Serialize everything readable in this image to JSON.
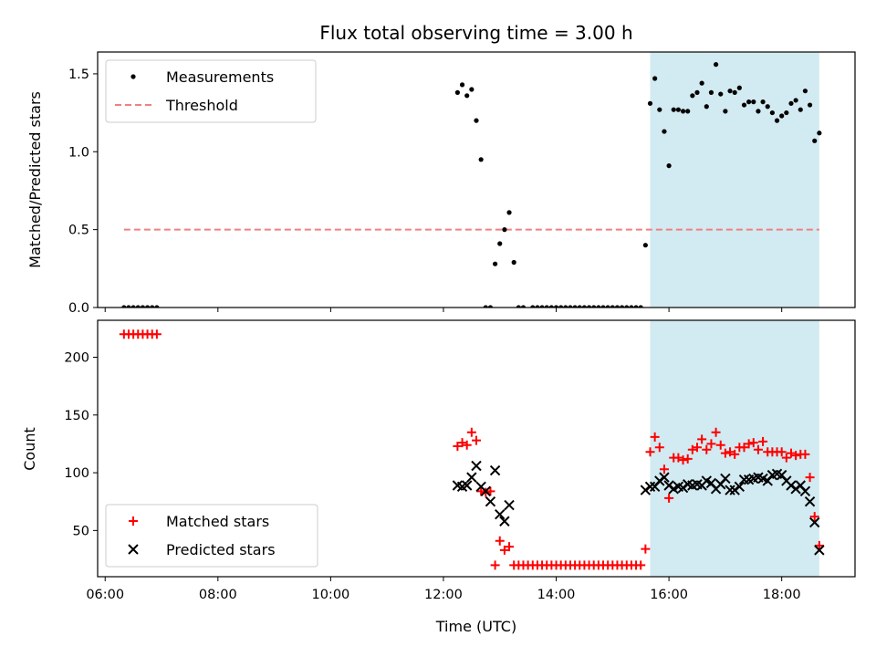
{
  "title": "Flux total observing time = 3.00 h",
  "colors": {
    "highlight": "#add8e6",
    "measurement": "#000000",
    "threshold": "#f08080",
    "matched": "#ff0000",
    "predicted": "#000000"
  },
  "highlight_range": [
    "15:40",
    "18:40"
  ],
  "chart_data": [
    {
      "type": "scatter",
      "name": "top-panel",
      "xlabel": "",
      "ylabel": "Matched/Predicted stars",
      "xlim": [
        "05:52",
        "19:18"
      ],
      "ylim": [
        0,
        1.64
      ],
      "xticks": [
        "06:00",
        "08:00",
        "10:00",
        "12:00",
        "14:00",
        "16:00",
        "18:00"
      ],
      "yticks": [
        "0.0",
        "0.5",
        "1.0",
        "1.5"
      ],
      "legend": {
        "position": "top-left",
        "entries": [
          "Measurements",
          "Threshold"
        ]
      },
      "threshold": {
        "name": "Threshold",
        "value": 0.5,
        "x_start": "06:20",
        "x_end": "18:40"
      },
      "series": [
        {
          "name": "Measurements",
          "marker": "dot",
          "points": [
            [
              "06:20",
              0
            ],
            [
              "06:25",
              0
            ],
            [
              "06:30",
              0
            ],
            [
              "06:35",
              0
            ],
            [
              "06:40",
              0
            ],
            [
              "06:45",
              0
            ],
            [
              "06:50",
              0
            ],
            [
              "06:55",
              0
            ],
            [
              "12:15",
              1.38
            ],
            [
              "12:20",
              1.43
            ],
            [
              "12:25",
              1.36
            ],
            [
              "12:30",
              1.4
            ],
            [
              "12:35",
              1.2
            ],
            [
              "12:40",
              0.95
            ],
            [
              "12:45",
              0
            ],
            [
              "12:50",
              0
            ],
            [
              "12:55",
              0.28
            ],
            [
              "13:00",
              0.41
            ],
            [
              "13:05",
              0.5
            ],
            [
              "13:10",
              0.61
            ],
            [
              "13:15",
              0.29
            ],
            [
              "13:20",
              0
            ],
            [
              "13:25",
              0
            ],
            [
              "13:35",
              0
            ],
            [
              "13:40",
              0
            ],
            [
              "13:45",
              0
            ],
            [
              "13:50",
              0
            ],
            [
              "13:55",
              0
            ],
            [
              "14:00",
              0
            ],
            [
              "14:05",
              0
            ],
            [
              "14:10",
              0
            ],
            [
              "14:15",
              0
            ],
            [
              "14:20",
              0
            ],
            [
              "14:25",
              0
            ],
            [
              "14:30",
              0
            ],
            [
              "14:35",
              0
            ],
            [
              "14:40",
              0
            ],
            [
              "14:45",
              0
            ],
            [
              "14:50",
              0
            ],
            [
              "14:55",
              0
            ],
            [
              "15:00",
              0
            ],
            [
              "15:05",
              0
            ],
            [
              "15:10",
              0
            ],
            [
              "15:15",
              0
            ],
            [
              "15:20",
              0
            ],
            [
              "15:25",
              0
            ],
            [
              "15:30",
              0
            ],
            [
              "15:35",
              0.4
            ],
            [
              "15:40",
              1.31
            ],
            [
              "15:45",
              1.47
            ],
            [
              "15:50",
              1.27
            ],
            [
              "15:55",
              1.13
            ],
            [
              "16:00",
              0.91
            ],
            [
              "16:05",
              1.27
            ],
            [
              "16:10",
              1.27
            ],
            [
              "16:15",
              1.26
            ],
            [
              "16:20",
              1.26
            ],
            [
              "16:25",
              1.36
            ],
            [
              "16:30",
              1.38
            ],
            [
              "16:35",
              1.44
            ],
            [
              "16:40",
              1.29
            ],
            [
              "16:45",
              1.38
            ],
            [
              "16:50",
              1.56
            ],
            [
              "16:55",
              1.37
            ],
            [
              "17:00",
              1.26
            ],
            [
              "17:05",
              1.39
            ],
            [
              "17:10",
              1.38
            ],
            [
              "17:15",
              1.41
            ],
            [
              "17:20",
              1.3
            ],
            [
              "17:25",
              1.32
            ],
            [
              "17:30",
              1.32
            ],
            [
              "17:35",
              1.26
            ],
            [
              "17:40",
              1.32
            ],
            [
              "17:45",
              1.29
            ],
            [
              "17:50",
              1.25
            ],
            [
              "17:55",
              1.2
            ],
            [
              "18:00",
              1.23
            ],
            [
              "18:05",
              1.25
            ],
            [
              "18:10",
              1.31
            ],
            [
              "18:15",
              1.33
            ],
            [
              "18:20",
              1.27
            ],
            [
              "18:25",
              1.39
            ],
            [
              "18:30",
              1.3
            ],
            [
              "18:35",
              1.07
            ],
            [
              "18:40",
              1.12
            ]
          ]
        }
      ]
    },
    {
      "type": "scatter",
      "name": "bottom-panel",
      "xlabel": "Time (UTC)",
      "ylabel": "Count",
      "xlim": [
        "05:52",
        "19:18"
      ],
      "ylim": [
        10,
        232
      ],
      "xticks": [
        "06:00",
        "08:00",
        "10:00",
        "12:00",
        "14:00",
        "16:00",
        "18:00"
      ],
      "yticks": [
        "50",
        "100",
        "150",
        "200"
      ],
      "legend": {
        "position": "bottom-left",
        "entries": [
          "Matched stars",
          "Predicted stars"
        ]
      },
      "series": [
        {
          "name": "Matched stars",
          "marker": "plus",
          "points": [
            [
              "06:20",
              220
            ],
            [
              "06:25",
              220
            ],
            [
              "06:30",
              220
            ],
            [
              "06:35",
              220
            ],
            [
              "06:40",
              220
            ],
            [
              "06:45",
              220
            ],
            [
              "06:50",
              220
            ],
            [
              "06:55",
              220
            ],
            [
              "12:15",
              123
            ],
            [
              "12:20",
              126
            ],
            [
              "12:25",
              124
            ],
            [
              "12:30",
              135
            ],
            [
              "12:35",
              128
            ],
            [
              "12:40",
              84
            ],
            [
              "12:45",
              83
            ],
            [
              "12:50",
              84
            ],
            [
              "12:55",
              20
            ],
            [
              "13:00",
              41
            ],
            [
              "13:05",
              33
            ],
            [
              "13:10",
              36
            ],
            [
              "13:15",
              20
            ],
            [
              "13:20",
              20
            ],
            [
              "13:25",
              20
            ],
            [
              "13:30",
              20
            ],
            [
              "13:35",
              20
            ],
            [
              "13:40",
              20
            ],
            [
              "13:45",
              20
            ],
            [
              "13:50",
              20
            ],
            [
              "13:55",
              20
            ],
            [
              "14:00",
              20
            ],
            [
              "14:05",
              20
            ],
            [
              "14:10",
              20
            ],
            [
              "14:15",
              20
            ],
            [
              "14:20",
              20
            ],
            [
              "14:25",
              20
            ],
            [
              "14:30",
              20
            ],
            [
              "14:35",
              20
            ],
            [
              "14:40",
              20
            ],
            [
              "14:45",
              20
            ],
            [
              "14:50",
              20
            ],
            [
              "14:55",
              20
            ],
            [
              "15:00",
              20
            ],
            [
              "15:05",
              20
            ],
            [
              "15:10",
              20
            ],
            [
              "15:15",
              20
            ],
            [
              "15:20",
              20
            ],
            [
              "15:25",
              20
            ],
            [
              "15:30",
              20
            ],
            [
              "15:35",
              34
            ],
            [
              "15:40",
              118
            ],
            [
              "15:45",
              131
            ],
            [
              "15:50",
              122
            ],
            [
              "15:55",
              103
            ],
            [
              "16:00",
              78
            ],
            [
              "16:05",
              113
            ],
            [
              "16:10",
              113
            ],
            [
              "16:15",
              111
            ],
            [
              "16:20",
              112
            ],
            [
              "16:25",
              120
            ],
            [
              "16:30",
              122
            ],
            [
              "16:35",
              129
            ],
            [
              "16:40",
              120
            ],
            [
              "16:45",
              125
            ],
            [
              "16:50",
              135
            ],
            [
              "16:55",
              124
            ],
            [
              "17:00",
              117
            ],
            [
              "17:05",
              118
            ],
            [
              "17:10",
              116
            ],
            [
              "17:15",
              122
            ],
            [
              "17:20",
              122
            ],
            [
              "17:25",
              125
            ],
            [
              "17:30",
              126
            ],
            [
              "17:35",
              120
            ],
            [
              "17:40",
              127
            ],
            [
              "17:45",
              118
            ],
            [
              "17:50",
              118
            ],
            [
              "17:55",
              118
            ],
            [
              "18:00",
              118
            ],
            [
              "18:05",
              113
            ],
            [
              "18:10",
              117
            ],
            [
              "18:15",
              115
            ],
            [
              "18:20",
              116
            ],
            [
              "18:25",
              116
            ],
            [
              "18:30",
              96
            ],
            [
              "18:35",
              62
            ],
            [
              "18:40",
              37
            ]
          ]
        },
        {
          "name": "Predicted stars",
          "marker": "x",
          "points": [
            [
              "12:15",
              89
            ],
            [
              "12:20",
              88
            ],
            [
              "12:25",
              89
            ],
            [
              "12:30",
              96
            ],
            [
              "12:35",
              106
            ],
            [
              "12:40",
              88
            ],
            [
              "12:45",
              84
            ],
            [
              "12:50",
              75
            ],
            [
              "12:55",
              102
            ],
            [
              "13:00",
              64
            ],
            [
              "13:05",
              58
            ],
            [
              "13:10",
              72
            ],
            [
              "15:35",
              85
            ],
            [
              "15:40",
              88
            ],
            [
              "15:45",
              88
            ],
            [
              "15:50",
              93
            ],
            [
              "15:55",
              96
            ],
            [
              "16:00",
              89
            ],
            [
              "16:05",
              86
            ],
            [
              "16:10",
              88
            ],
            [
              "16:15",
              87
            ],
            [
              "16:20",
              90
            ],
            [
              "16:25",
              89
            ],
            [
              "16:30",
              90
            ],
            [
              "16:35",
              89
            ],
            [
              "16:40",
              93
            ],
            [
              "16:45",
              91
            ],
            [
              "16:50",
              86
            ],
            [
              "16:55",
              90
            ],
            [
              "17:00",
              95
            ],
            [
              "17:05",
              85
            ],
            [
              "17:10",
              85
            ],
            [
              "17:15",
              88
            ],
            [
              "17:20",
              94
            ],
            [
              "17:25",
              94
            ],
            [
              "17:30",
              95
            ],
            [
              "17:35",
              96
            ],
            [
              "17:40",
              95
            ],
            [
              "17:45",
              93
            ],
            [
              "17:50",
              98
            ],
            [
              "17:55",
              99
            ],
            [
              "18:00",
              98
            ],
            [
              "18:05",
              93
            ],
            [
              "18:10",
              89
            ],
            [
              "18:15",
              86
            ],
            [
              "18:20",
              89
            ],
            [
              "18:25",
              84
            ],
            [
              "18:30",
              75
            ],
            [
              "18:35",
              57
            ],
            [
              "18:40",
              33
            ]
          ]
        }
      ]
    }
  ]
}
